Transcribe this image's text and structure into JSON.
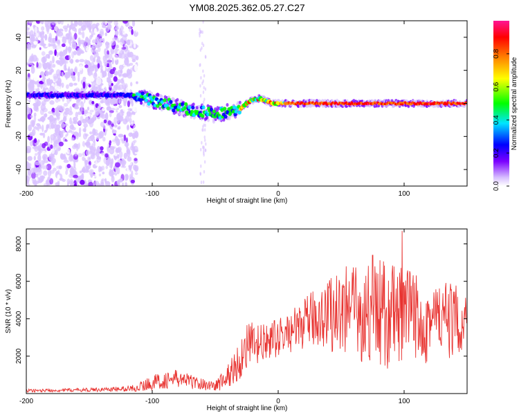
{
  "title": "YM08.2025.362.05.27.C27",
  "chart_data": [
    {
      "type": "heatmap",
      "xlabel": "Height of straight line (km)",
      "ylabel": "Frequency (Hz)",
      "xlim": [
        -200,
        150
      ],
      "ylim": [
        -50,
        50
      ],
      "xticks": [
        -200,
        -100,
        0,
        100
      ],
      "xtick_labels": [
        "-200",
        "-100",
        "0",
        "100"
      ],
      "yticks": [
        -40,
        -20,
        0,
        20,
        40
      ],
      "ytick_labels": [
        "-40",
        "-20",
        "0",
        "20",
        "40"
      ],
      "ridge": {
        "description": "Dominant spectral energy band; centre frequency vs height",
        "x": [
          -200,
          -120,
          -110,
          -100,
          -90,
          -80,
          -70,
          -60,
          -50,
          -40,
          -30,
          -25,
          -20,
          -15,
          -10,
          -5,
          0,
          10,
          50,
          90,
          100,
          150
        ],
        "y": [
          5,
          5,
          4,
          2,
          0,
          -2,
          -4,
          -5,
          -7,
          -5,
          -3,
          0,
          2,
          3,
          2,
          0,
          0,
          0,
          0,
          0,
          0,
          0
        ]
      },
      "colorbar": {
        "label": "Normalized spectral amplitude",
        "range": [
          0,
          1
        ],
        "ticks": [
          0.0,
          0.2,
          0.4,
          0.6,
          0.8
        ],
        "tick_labels": [
          "0.0",
          "0.2",
          "0.4",
          "0.6",
          "0.8"
        ],
        "colormap": [
          "#ffffff",
          "#d9c2ff",
          "#7b00ff",
          "#0000ff",
          "#00e5ff",
          "#00ff00",
          "#ffff00",
          "#ff8000",
          "#ff0000",
          "#ff1493"
        ]
      }
    },
    {
      "type": "line",
      "xlabel": "Height of straight line (km)",
      "ylabel": "SNR (10 * v/v)",
      "xlim": [
        -200,
        150
      ],
      "ylim": [
        0,
        8800
      ],
      "xticks": [
        -200,
        -100,
        0,
        100
      ],
      "xtick_labels": [
        "-200",
        "-100",
        "0",
        "100"
      ],
      "yticks": [
        2000,
        4000,
        6000,
        8000
      ],
      "ytick_labels": [
        "2000",
        "4000",
        "6000",
        "8000"
      ],
      "color": "#e8322f",
      "envelope": {
        "x": [
          -200,
          -150,
          -120,
          -110,
          -100,
          -80,
          -60,
          -50,
          -40,
          -30,
          -25,
          -20,
          -10,
          0,
          10,
          20,
          30,
          40,
          50,
          60,
          70,
          80,
          90,
          100,
          110,
          120,
          130,
          140,
          150
        ],
        "mean": [
          150,
          200,
          250,
          350,
          600,
          800,
          500,
          400,
          900,
          1800,
          2600,
          2500,
          2700,
          3000,
          3300,
          3700,
          4100,
          4300,
          4400,
          4300,
          4200,
          4300,
          4100,
          4100,
          4100,
          4000,
          3900,
          3900,
          3800
        ],
        "spread": [
          80,
          100,
          150,
          250,
          400,
          500,
          300,
          300,
          700,
          1100,
          1300,
          1300,
          1000,
          1000,
          1100,
          1300,
          1600,
          2000,
          2400,
          2600,
          2700,
          3000,
          2900,
          2700,
          2600,
          2400,
          2200,
          1900,
          1800
        ]
      },
      "peaks": [
        {
          "x": 98.5,
          "y": 8700
        },
        {
          "x": 75,
          "y": 7400
        },
        {
          "x": 54,
          "y": 6800
        }
      ]
    }
  ]
}
